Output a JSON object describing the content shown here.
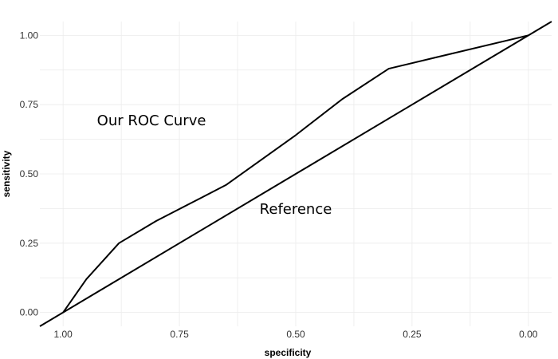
{
  "chart_data": {
    "type": "line",
    "title": "",
    "xlabel": "specificity",
    "ylabel": "sensitivity",
    "x_reversed": true,
    "xlim": [
      1.05,
      -0.05
    ],
    "ylim": [
      -0.05,
      1.05
    ],
    "x_ticks": [
      {
        "value": 1.0,
        "label": "1.00"
      },
      {
        "value": 0.75,
        "label": "0.75"
      },
      {
        "value": 0.5,
        "label": "0.50"
      },
      {
        "value": 0.25,
        "label": "0.25"
      },
      {
        "value": 0.0,
        "label": "0.00"
      }
    ],
    "y_ticks": [
      {
        "value": 0.0,
        "label": "0.00"
      },
      {
        "value": 0.25,
        "label": "0.25"
      },
      {
        "value": 0.5,
        "label": "0.50"
      },
      {
        "value": 0.75,
        "label": "0.75"
      },
      {
        "value": 1.0,
        "label": "1.00"
      }
    ],
    "grid": true,
    "series": [
      {
        "name": "Our ROC Curve",
        "x": [
          1.0,
          0.95,
          0.88,
          0.8,
          0.65,
          0.5,
          0.4,
          0.3,
          0.2,
          0.0
        ],
        "y": [
          0.0,
          0.12,
          0.25,
          0.33,
          0.46,
          0.64,
          0.77,
          0.88,
          0.92,
          1.0
        ]
      },
      {
        "name": "Reference",
        "x": [
          1.05,
          -0.05
        ],
        "y": [
          -0.05,
          1.05
        ]
      }
    ],
    "annotations": [
      {
        "text": "Our ROC Curve",
        "x": 0.81,
        "y": 0.69
      },
      {
        "text": "Reference",
        "x": 0.5,
        "y": 0.37
      }
    ]
  }
}
